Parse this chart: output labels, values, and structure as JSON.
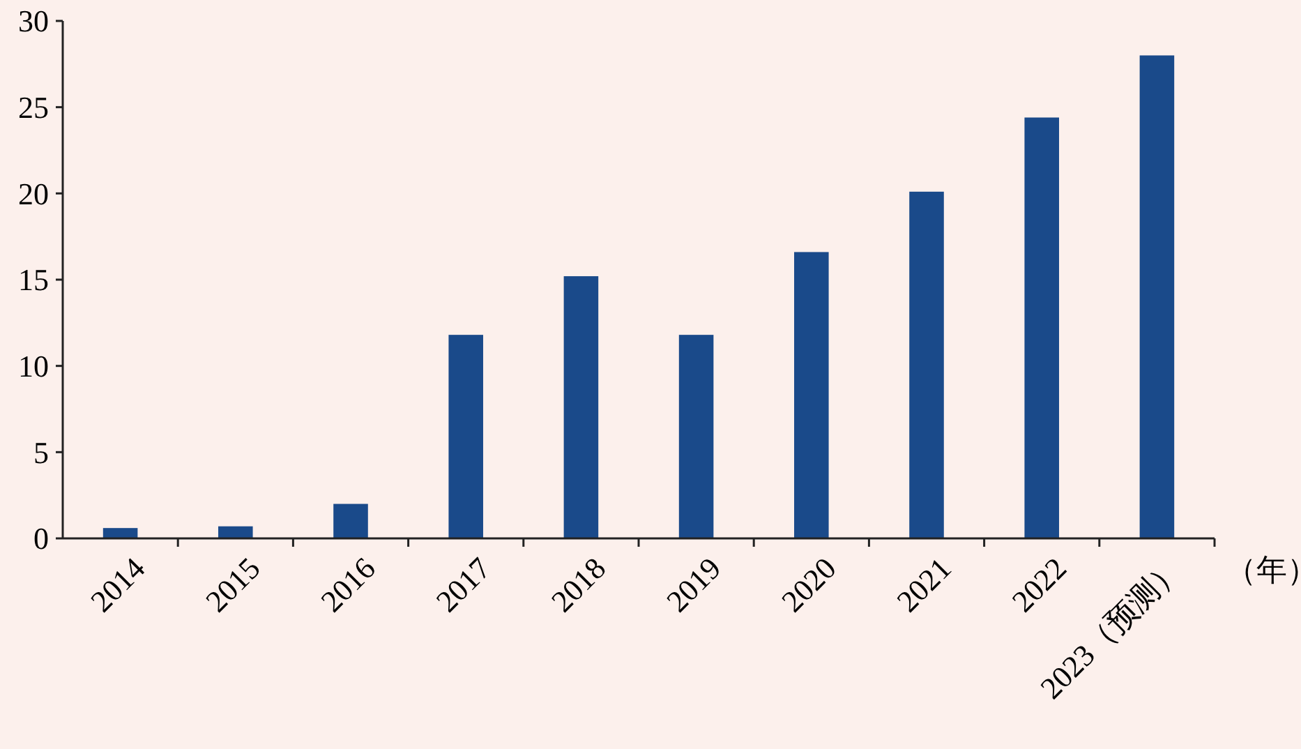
{
  "chart_data": {
    "type": "bar",
    "xlabel": "（年）",
    "categories": [
      "2014",
      "2015",
      "2016",
      "2017",
      "2018",
      "2019",
      "2020",
      "2021",
      "2022",
      "2023（预测）"
    ],
    "values": [
      0.6,
      0.7,
      2.0,
      11.8,
      15.2,
      11.8,
      16.6,
      20.1,
      24.4,
      28.0
    ],
    "color": "#1a4a8a",
    "ylim": [
      0,
      30
    ],
    "yticks": [
      0,
      5,
      10,
      15,
      20,
      25,
      30
    ],
    "grid": false
  }
}
